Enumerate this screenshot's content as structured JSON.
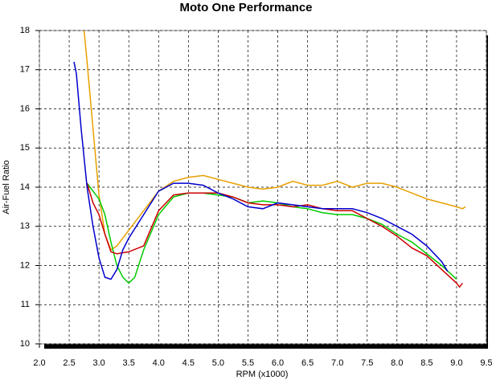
{
  "chart_data": {
    "type": "line",
    "title": "Moto One Performance",
    "x_label": "RPM (x1000)",
    "y_label": "Air-Fuel Ratio",
    "xlim": [
      2.0,
      9.5
    ],
    "ylim": [
      10,
      18
    ],
    "grid": true,
    "xticks": [
      {
        "value": 2.0,
        "label": "2.0"
      },
      {
        "value": 2.5,
        "label": "2.5"
      },
      {
        "value": 3.0,
        "label": "3.0"
      },
      {
        "value": 3.5,
        "label": "3.5"
      },
      {
        "value": 4.0,
        "label": "4.0"
      },
      {
        "value": 4.5,
        "label": "4.5"
      },
      {
        "value": 5.0,
        "label": "5.0"
      },
      {
        "value": 5.5,
        "label": "5.5"
      },
      {
        "value": 6.0,
        "label": "6.0"
      },
      {
        "value": 6.5,
        "label": "6.5"
      },
      {
        "value": 7.0,
        "label": "7.0"
      },
      {
        "value": 7.5,
        "label": "7.5"
      },
      {
        "value": 8.0,
        "label": "8.0"
      },
      {
        "value": 8.5,
        "label": "8.5"
      },
      {
        "value": 9.0,
        "label": "9.0"
      },
      {
        "value": 9.5,
        "label": "9.5"
      }
    ],
    "yticks": [
      10,
      11,
      12,
      13,
      14,
      15,
      16,
      17,
      18
    ],
    "series": [
      {
        "color": "#e8a000",
        "x": [
          2.75,
          2.8,
          2.9,
          3.0,
          3.1,
          3.2,
          3.3,
          3.5,
          3.75,
          4.0,
          4.25,
          4.5,
          4.75,
          5.0,
          5.25,
          5.5,
          5.75,
          6.0,
          6.25,
          6.5,
          6.75,
          7.0,
          7.25,
          7.5,
          7.75,
          8.0,
          8.25,
          8.5,
          8.75,
          9.0,
          9.1,
          9.15
        ],
        "values": [
          18,
          17.2,
          15.5,
          13.8,
          12.8,
          12.4,
          12.5,
          12.9,
          13.4,
          13.9,
          14.15,
          14.25,
          14.3,
          14.2,
          14.1,
          14.0,
          13.95,
          14.0,
          14.15,
          14.05,
          14.05,
          14.15,
          14.0,
          14.1,
          14.1,
          14.0,
          13.85,
          13.7,
          13.6,
          13.5,
          13.45,
          13.5
        ]
      },
      {
        "color": "#00cc00",
        "x": [
          2.8,
          2.9,
          3.0,
          3.1,
          3.2,
          3.3,
          3.4,
          3.5,
          3.6,
          3.75,
          4.0,
          4.25,
          4.5,
          4.75,
          5.0,
          5.25,
          5.5,
          5.75,
          6.0,
          6.25,
          6.5,
          6.75,
          7.0,
          7.25,
          7.5,
          7.75,
          8.0,
          8.25,
          8.5,
          8.75,
          9.0
        ],
        "values": [
          14.1,
          13.9,
          13.7,
          13.3,
          12.6,
          12.0,
          11.7,
          11.55,
          11.7,
          12.4,
          13.3,
          13.75,
          13.85,
          13.85,
          13.8,
          13.75,
          13.6,
          13.65,
          13.6,
          13.5,
          13.45,
          13.35,
          13.3,
          13.3,
          13.2,
          13.05,
          12.8,
          12.6,
          12.3,
          12.0,
          11.65
        ]
      },
      {
        "color": "#cc0000",
        "x": [
          2.8,
          2.9,
          3.0,
          3.1,
          3.2,
          3.3,
          3.5,
          3.75,
          4.0,
          4.25,
          4.5,
          4.75,
          5.0,
          5.25,
          5.5,
          5.75,
          6.0,
          6.25,
          6.5,
          6.75,
          7.0,
          7.25,
          7.5,
          7.75,
          8.0,
          8.25,
          8.5,
          8.75,
          9.0,
          9.05,
          9.1
        ],
        "values": [
          14.1,
          13.6,
          13.3,
          12.8,
          12.35,
          12.3,
          12.35,
          12.5,
          13.4,
          13.8,
          13.85,
          13.85,
          13.85,
          13.75,
          13.6,
          13.55,
          13.55,
          13.5,
          13.55,
          13.45,
          13.4,
          13.4,
          13.2,
          13.0,
          12.75,
          12.45,
          12.25,
          11.9,
          11.55,
          11.45,
          11.55
        ]
      },
      {
        "color": "#0000cc",
        "x": [
          2.58,
          2.62,
          2.7,
          2.8,
          2.9,
          3.0,
          3.1,
          3.2,
          3.3,
          3.4,
          3.5,
          3.75,
          4.0,
          4.25,
          4.5,
          4.75,
          5.0,
          5.25,
          5.5,
          5.75,
          6.0,
          6.25,
          6.5,
          6.75,
          7.0,
          7.25,
          7.5,
          7.75,
          8.0,
          8.25,
          8.5,
          8.75,
          8.85
        ],
        "values": [
          17.2,
          16.9,
          15.5,
          14.0,
          13.0,
          12.2,
          11.7,
          11.65,
          11.9,
          12.4,
          12.7,
          13.3,
          13.9,
          14.1,
          14.1,
          14.05,
          13.85,
          13.7,
          13.5,
          13.45,
          13.6,
          13.55,
          13.5,
          13.45,
          13.45,
          13.45,
          13.35,
          13.2,
          13.0,
          12.8,
          12.5,
          12.1,
          11.85
        ]
      }
    ]
  }
}
